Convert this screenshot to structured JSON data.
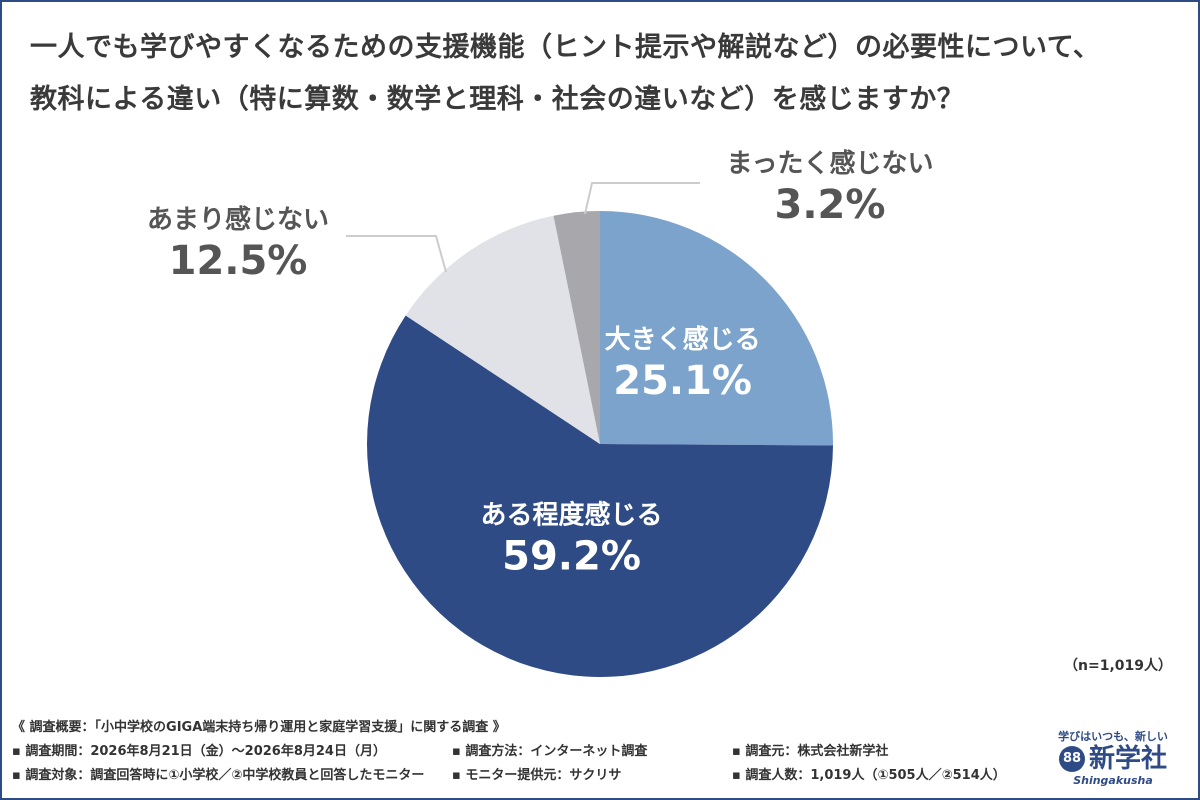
{
  "title_line1": "一人でも学びやすくなるための支援機能（ヒント提示や解説など）の必要性について、",
  "title_line2": "教科による違い（特に算数・数学と理科・社会の違いなど）を感じますか？",
  "sample_size": "（n=1,019人）",
  "colors": {
    "frame": "#2f4b86",
    "label_light": "#ffffff",
    "label_dark": "#555555"
  },
  "chart_data": {
    "type": "pie",
    "start_angle_deg": 0,
    "direction": "clockwise",
    "slices": [
      {
        "label": "大きく感じる",
        "value": 25.1,
        "value_text": "25.1%",
        "color": "#7ba3cc"
      },
      {
        "label": "ある程度感じる",
        "value": 59.2,
        "value_text": "59.2%",
        "color": "#2f4b86"
      },
      {
        "label": "あまり感じない",
        "value": 12.5,
        "value_text": "12.5%",
        "color": "#e1e2e8"
      },
      {
        "label": "まったく感じない",
        "value": 3.2,
        "value_text": "3.2%",
        "color": "#a8a8ac"
      }
    ]
  },
  "notes": {
    "survey_overview": "《 調査概要：「小中学校のGIGA端末持ち帰り運用と家庭学習支援」に関する調査 》",
    "period": "▪ 調査期間：2026年8月21日（金）〜2026年8月24日（月）",
    "method": "▪ 調査方法：インターネット調査",
    "organizer": "▪ 調査元：株式会社新学社",
    "target": "▪ 調査対象：調査回答時に①小学校／②中学校教員と回答したモニター",
    "monitor_provider": "▪ モニター提供元：サクリサ",
    "respondents": "▪ 調査人数：1,019人（①505人／②514人）"
  },
  "logo": {
    "tagline": "学びはいつも、新しい",
    "mark": "88",
    "name": "新学社",
    "romanized": "Shingakusha"
  }
}
